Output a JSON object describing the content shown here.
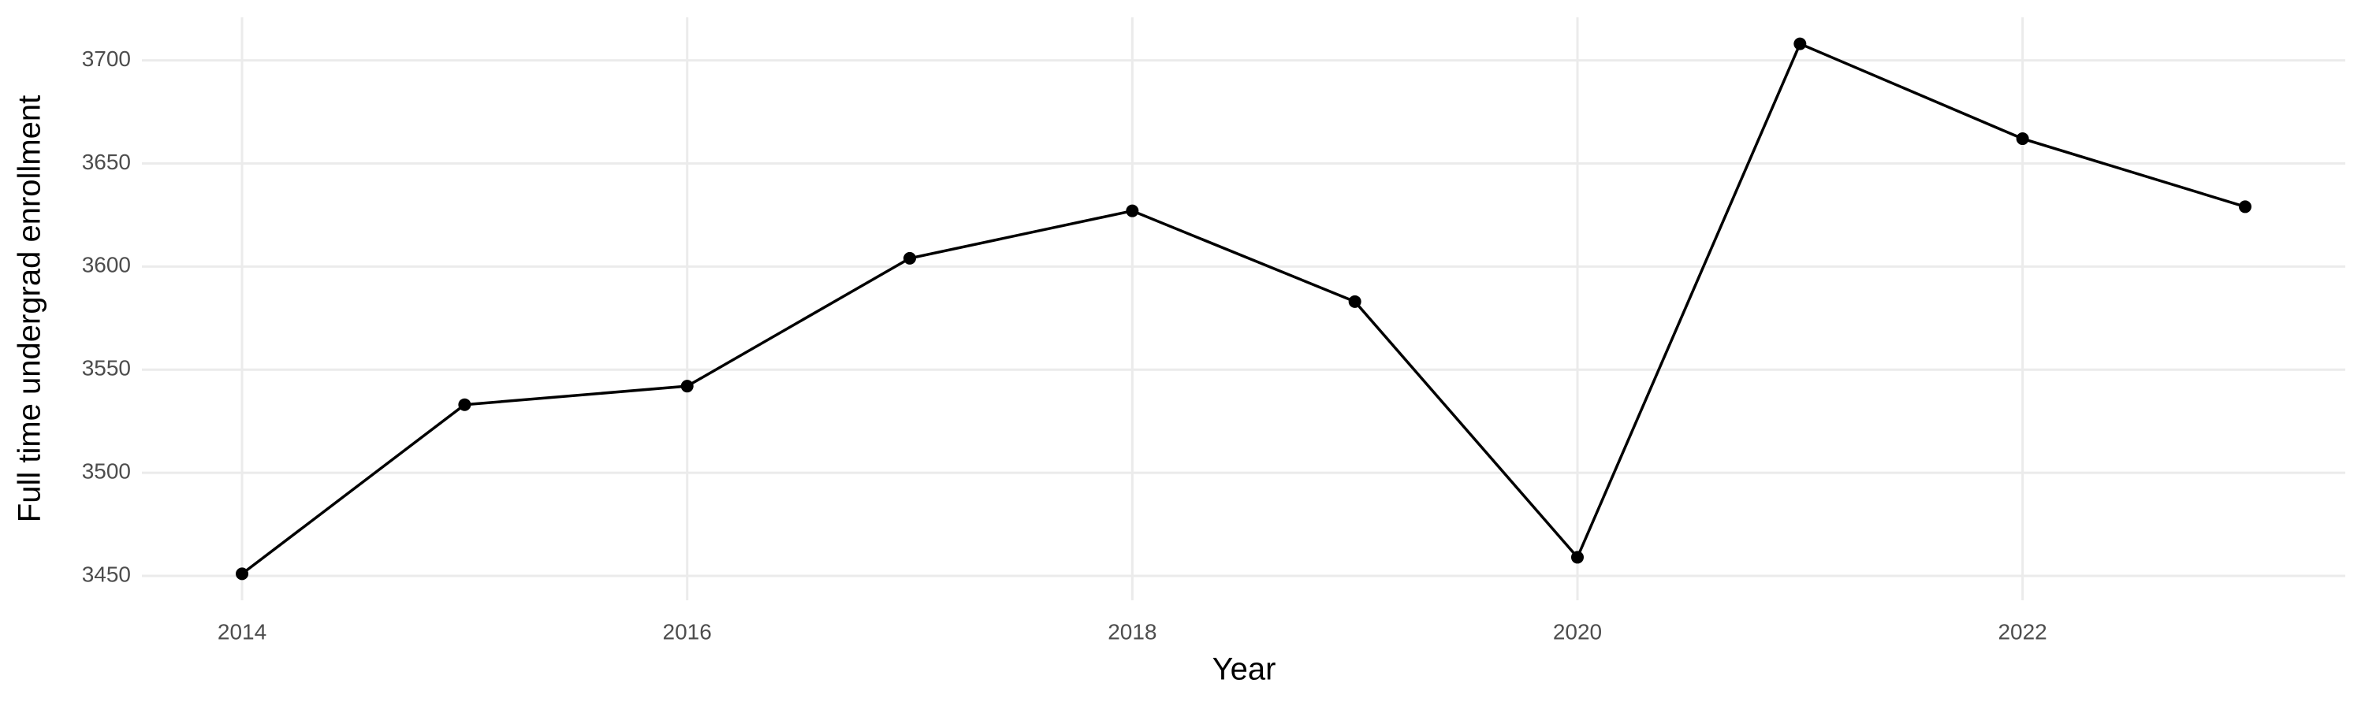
{
  "chart_data": {
    "type": "line",
    "x_label": "Year",
    "y_label": "Full time undergrad enrollment",
    "x": [
      2014,
      2015,
      2016,
      2017,
      2018,
      2019,
      2020,
      2021,
      2022,
      2023
    ],
    "series": [
      {
        "name": "Full time undergrad enrollment",
        "color": "#000000",
        "values": [
          3451,
          3533,
          3542,
          3604,
          3627,
          3583,
          3459,
          3708,
          3662,
          3629
        ]
      }
    ],
    "xlim": [
      2013.55,
      2023.45
    ],
    "xticks": [
      2014,
      2016,
      2018,
      2020,
      2022
    ],
    "ylim": [
      3438.15,
      3720.85
    ],
    "yticks": [
      3450,
      3500,
      3550,
      3600,
      3650,
      3700
    ],
    "grid": true
  }
}
